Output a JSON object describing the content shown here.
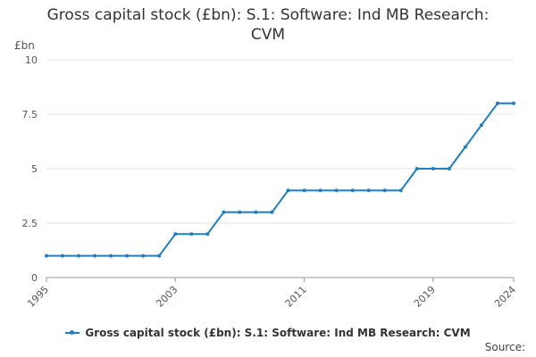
{
  "chart_data": {
    "type": "line",
    "title": "Gross capital stock (£bn): S.1: Software: Ind MB Research: CVM",
    "ylabel": "£bn",
    "ylim": [
      0,
      10
    ],
    "yticks": [
      {
        "value": 0,
        "label": "0"
      },
      {
        "value": 2.5,
        "label": "2.5"
      },
      {
        "value": 5,
        "label": "5"
      },
      {
        "value": 7.5,
        "label": "7.5"
      },
      {
        "value": 10,
        "label": "10"
      }
    ],
    "xlim": [
      1995,
      2024
    ],
    "xticks": [
      1995,
      2003,
      2011,
      2019,
      2024
    ],
    "grid": true,
    "legend_position": "bottom",
    "color": "#1f7fbf",
    "series": [
      {
        "name": "Gross capital stock (£bn): S.1: Software: Ind MB Research: CVM",
        "x": [
          1995,
          1996,
          1997,
          1998,
          1999,
          2000,
          2001,
          2002,
          2003,
          2004,
          2005,
          2006,
          2007,
          2008,
          2009,
          2010,
          2011,
          2012,
          2013,
          2014,
          2015,
          2016,
          2017,
          2018,
          2019,
          2020,
          2021,
          2022,
          2023,
          2024
        ],
        "values": [
          1,
          1,
          1,
          1,
          1,
          1,
          1,
          1,
          2,
          2,
          2,
          3,
          3,
          3,
          3,
          4,
          4,
          4,
          4,
          4,
          4,
          4,
          4,
          5,
          5,
          5,
          6,
          7,
          8,
          8
        ]
      }
    ]
  },
  "source_label": "Source:"
}
